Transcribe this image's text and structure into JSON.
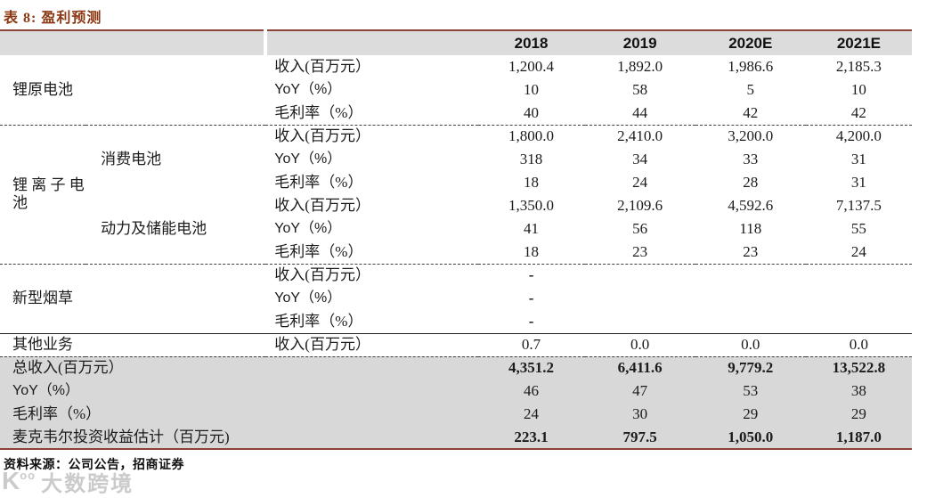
{
  "title": "表 8: 盈利预测",
  "table": {
    "columns": [
      "2018",
      "2019",
      "2020E",
      "2021E"
    ],
    "sections": [
      {
        "group": "锂原电池",
        "subgroups": [
          {
            "name": "",
            "rows": [
              {
                "metric": "收入(百万元）",
                "values": [
                  "1,200.4",
                  "1,892.0",
                  "1,986.6",
                  "2,185.3"
                ]
              },
              {
                "metric": "YoY（%）",
                "values": [
                  "10",
                  "58",
                  "5",
                  "10"
                ]
              },
              {
                "metric": "毛利率（%）",
                "values": [
                  "40",
                  "44",
                  "42",
                  "42"
                ]
              }
            ]
          }
        ]
      },
      {
        "group": "锂 离 子 电池",
        "subgroups": [
          {
            "name": "消费电池",
            "rows": [
              {
                "metric": "收入(百万元）",
                "values": [
                  "1,800.0",
                  "2,410.0",
                  "3,200.0",
                  "4,200.0"
                ]
              },
              {
                "metric": "YoY（%）",
                "values": [
                  "318",
                  "34",
                  "33",
                  "31"
                ]
              },
              {
                "metric": "毛利率（%）",
                "values": [
                  "18",
                  "24",
                  "28",
                  "31"
                ]
              }
            ]
          },
          {
            "name": "动力及储能电池",
            "rows": [
              {
                "metric": "收入(百万元）",
                "values": [
                  "1,350.0",
                  "2,109.6",
                  "4,592.6",
                  "7,137.5"
                ]
              },
              {
                "metric": "YoY（%）",
                "values": [
                  "41",
                  "56",
                  "118",
                  "55"
                ]
              },
              {
                "metric": "毛利率（%）",
                "values": [
                  "18",
                  "23",
                  "23",
                  "24"
                ]
              }
            ]
          }
        ]
      },
      {
        "group": "新型烟草",
        "subgroups": [
          {
            "name": "",
            "rows": [
              {
                "metric": "收入(百万元）",
                "values": [
                  "-",
                  "",
                  "",
                  ""
                ]
              },
              {
                "metric": "YoY（%）",
                "values": [
                  "-",
                  "",
                  "",
                  ""
                ]
              },
              {
                "metric": "毛利率（%）",
                "values": [
                  "-",
                  "",
                  "",
                  ""
                ]
              }
            ]
          }
        ]
      },
      {
        "group": "其他业务",
        "subgroups": [
          {
            "name": "",
            "rows": [
              {
                "metric": "收入(百万元）",
                "values": [
                  "0.7",
                  "0.0",
                  "0.0",
                  "0.0"
                ]
              }
            ]
          }
        ]
      }
    ],
    "summary": {
      "rows": [
        {
          "label": "总收入(百万元）",
          "values": [
            "4,351.2",
            "6,411.6",
            "9,779.2",
            "13,522.8"
          ]
        },
        {
          "label": "YoY（%）",
          "values": [
            "46",
            "47",
            "53",
            "38"
          ]
        },
        {
          "label": "毛利率（%）",
          "values": [
            "24",
            "30",
            "29",
            "29"
          ]
        },
        {
          "label": "麦克韦尔投资收益估计（百万元)",
          "values": [
            "223.1",
            "797.5",
            "1,050.0",
            "1,187.0"
          ]
        }
      ]
    }
  },
  "source": "资料来源：公司公告，招商证券",
  "watermark": {
    "logo_k": "K",
    "logo_oo": "oo",
    "text": "大数跨境"
  },
  "colors": {
    "accent_title": "#8C3813",
    "table_line": "#8A4338",
    "header_bg": "#DCDCDC",
    "summary_bg": "#D8D8D8"
  }
}
